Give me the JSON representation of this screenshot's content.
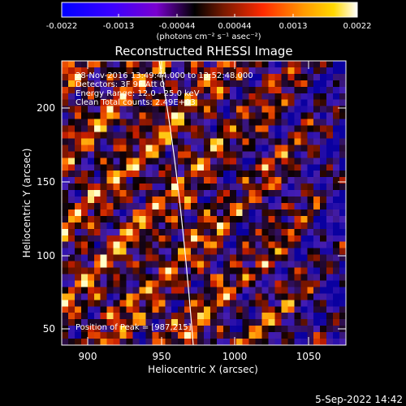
{
  "colorbar": {
    "ticks": [
      "-0.0022",
      "-0.0013",
      "-0.00044",
      "0.00044",
      "0.0013",
      "0.0022"
    ],
    "unit_label": "(photons cm⁻² s⁻¹ asec⁻²)",
    "colors": [
      "#0000ff",
      "#6a00ff",
      "#000000",
      "#7a1a00",
      "#ff2a00",
      "#ff9a00",
      "#ffd000",
      "#ffffff"
    ]
  },
  "plot": {
    "title": "Reconstructed RHESSI Image",
    "xlabel": "Heliocentric X (arcsec)",
    "ylabel": "Heliocentric Y (arcsec)",
    "xticks": [
      "900",
      "950",
      "1000",
      "1050"
    ],
    "yticks": [
      "50",
      "100",
      "150",
      "200"
    ],
    "info": [
      "28-Nov-2016 13:49:44.000 to 13:52:48.000",
      "Detectors: 3F 9F  Att 0",
      "Energy Range: 12.0 - 25.0 keV",
      "Clean     Total counts: 2.49E+03"
    ],
    "peak": "Position of Peak = [987,215]"
  },
  "timestamp": "5-Sep-2022 14:42"
}
